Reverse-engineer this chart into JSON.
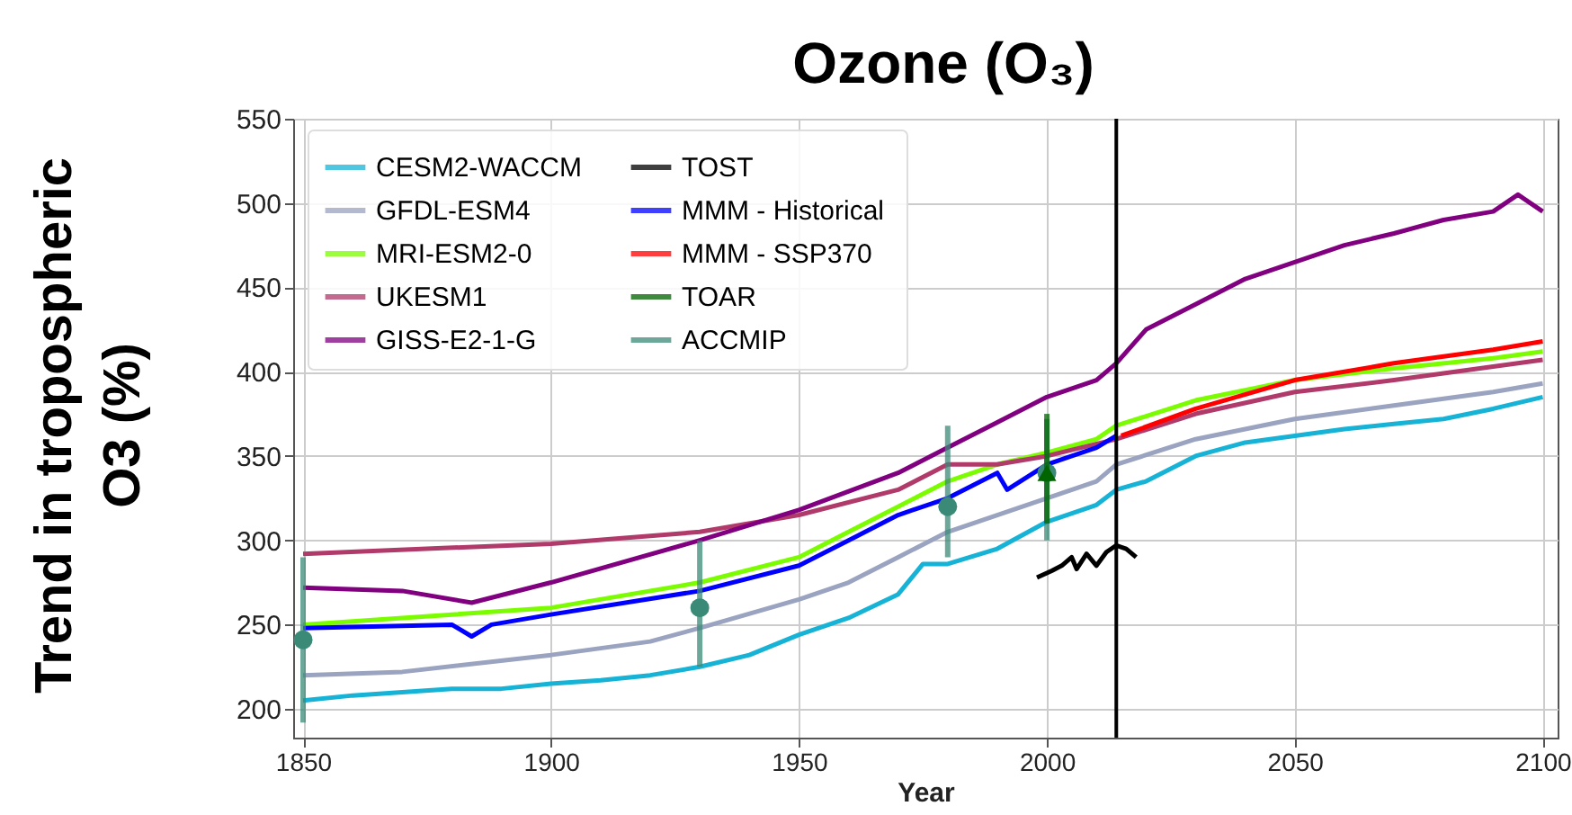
{
  "chart_data": {
    "type": "line",
    "title": "Ozone (O₃)",
    "xlabel": "Year",
    "ylabel": "Trend in tropospheric O3 (%)",
    "xlim": [
      1848,
      2103
    ],
    "ylim": [
      183,
      550
    ],
    "xticks": [
      1850,
      1900,
      1950,
      2000,
      2050,
      2100
    ],
    "yticks": [
      200,
      250,
      300,
      350,
      400,
      450,
      500,
      550
    ],
    "grid": true,
    "legend": "top left",
    "series": [
      {
        "name": "CESM2-WACCM",
        "color": "#17b3d6",
        "x": [
          1850,
          1860,
          1870,
          1880,
          1890,
          1900,
          1910,
          1920,
          1930,
          1940,
          1950,
          1960,
          1970,
          1975,
          1980,
          1990,
          2000,
          2010,
          2014,
          2020,
          2030,
          2040,
          2050,
          2060,
          2070,
          2080,
          2090,
          2100
        ],
        "values": [
          205,
          208,
          210,
          212,
          212,
          215,
          217,
          220,
          225,
          232,
          244,
          254,
          268,
          286,
          286,
          295,
          311,
          321,
          330,
          335,
          350,
          358,
          362,
          366,
          369,
          372,
          378,
          385
        ]
      },
      {
        "name": "GFDL-ESM4",
        "color": "#9aa3c0",
        "x": [
          1850,
          1870,
          1900,
          1920,
          1930,
          1950,
          1960,
          1970,
          1980,
          1990,
          2000,
          2010,
          2014,
          2030,
          2050,
          2070,
          2090,
          2100
        ],
        "values": [
          220,
          222,
          232,
          240,
          248,
          265,
          275,
          290,
          305,
          315,
          325,
          335,
          345,
          360,
          372,
          380,
          388,
          393
        ]
      },
      {
        "name": "MRI-ESM2-0",
        "color": "#7cfc00",
        "x": [
          1850,
          1900,
          1930,
          1950,
          1960,
          1970,
          1980,
          1990,
          2000,
          2010,
          2014,
          2030,
          2050,
          2070,
          2090,
          2100
        ],
        "values": [
          250,
          260,
          275,
          290,
          305,
          320,
          335,
          345,
          352,
          360,
          368,
          383,
          395,
          402,
          408,
          412
        ]
      },
      {
        "name": "UKESM1",
        "color": "#b03a6a",
        "x": [
          1850,
          1900,
          1930,
          1950,
          1970,
          1980,
          1990,
          2000,
          2014,
          2030,
          2050,
          2070,
          2090,
          2100
        ],
        "values": [
          292,
          298,
          305,
          315,
          330,
          345,
          345,
          350,
          360,
          375,
          388,
          395,
          403,
          407
        ]
      },
      {
        "name": "GISS-E2-1-G",
        "color": "#800080",
        "x": [
          1850,
          1870,
          1884,
          1900,
          1930,
          1950,
          1970,
          1980,
          1990,
          2000,
          2010,
          2014,
          2020,
          2030,
          2040,
          2050,
          2060,
          2070,
          2080,
          2090,
          2095,
          2100
        ],
        "values": [
          272,
          270,
          263,
          275,
          300,
          318,
          340,
          355,
          370,
          385,
          395,
          405,
          425,
          440,
          455,
          465,
          475,
          482,
          490,
          495,
          505,
          495
        ]
      },
      {
        "name": "TOST",
        "color": "#000000",
        "x": [
          1998,
          2001,
          2003,
          2005,
          2006,
          2008,
          2010,
          2012,
          2014,
          2016,
          2018
        ],
        "values": [
          278,
          282,
          285,
          290,
          283,
          292,
          285,
          293,
          297,
          295,
          290
        ]
      },
      {
        "name": "MMM -  Historical",
        "color": "#0000ff",
        "x": [
          1850,
          1880,
          1884,
          1888,
          1900,
          1930,
          1950,
          1960,
          1970,
          1980,
          1990,
          1992,
          2000,
          2010,
          2014
        ],
        "values": [
          248,
          250,
          243,
          250,
          256,
          270,
          285,
          300,
          315,
          325,
          340,
          330,
          345,
          355,
          362
        ]
      },
      {
        "name": "MMM -  SSP370",
        "color": "#ff0000",
        "x": [
          2015,
          2030,
          2050,
          2070,
          2090,
          2100
        ],
        "values": [
          362,
          378,
          395,
          405,
          413,
          418
        ]
      },
      {
        "name": "TOAR",
        "type": "scatter",
        "marker": "triangle",
        "color": "#006400",
        "x": [
          2000
        ],
        "values": [
          340
        ],
        "errors": [
          [
            310,
            375
          ]
        ]
      },
      {
        "name": "ACCMIP",
        "type": "scatter",
        "marker": "circle",
        "color": "#3b8a78",
        "x": [
          1850,
          1930,
          1980,
          2000
        ],
        "values": [
          241,
          260,
          320,
          340
        ],
        "errors": [
          [
            192,
            290
          ],
          [
            225,
            300
          ],
          [
            290,
            368
          ],
          [
            300,
            372
          ]
        ]
      }
    ],
    "ref_lines": [
      {
        "axis": "x",
        "value": 2014,
        "color": "#000000"
      }
    ]
  }
}
